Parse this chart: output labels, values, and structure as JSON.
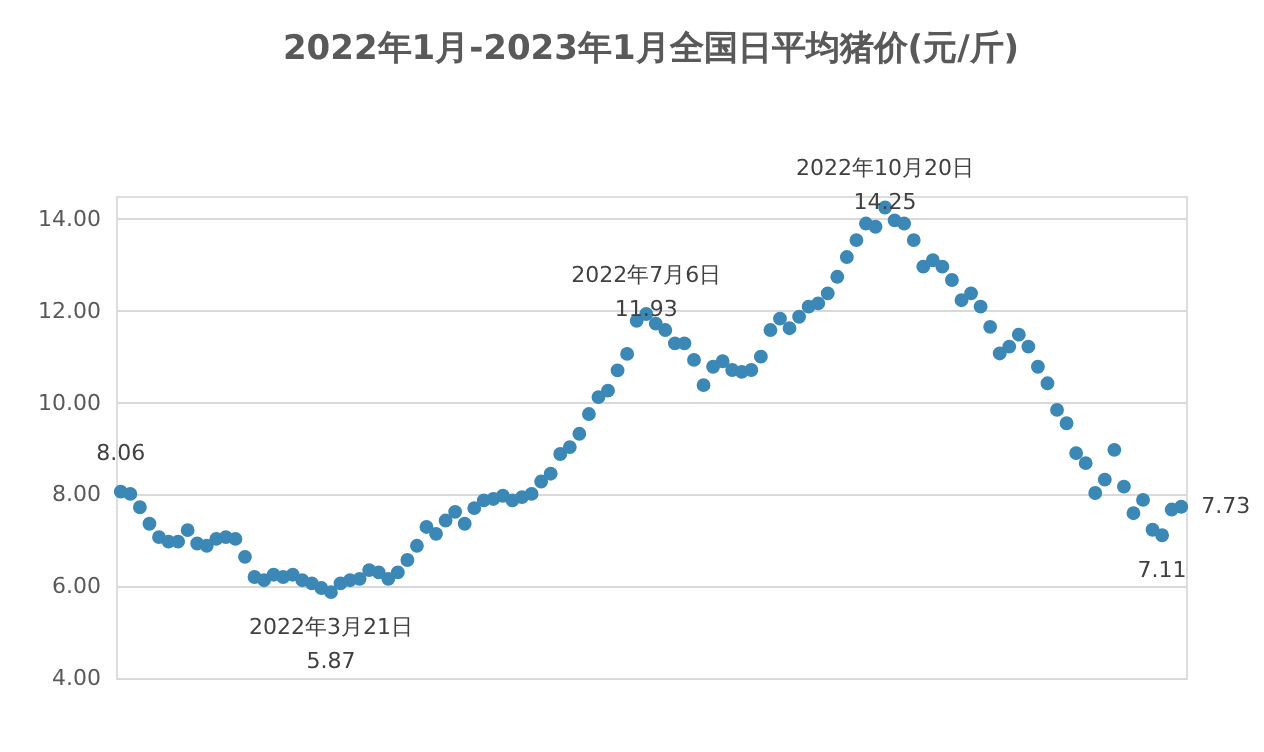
{
  "chart_data": {
    "type": "scatter",
    "title": "2022年1月-2023年1月全国日平均猪价(元/斤)",
    "categories": [
      null,
      null,
      null,
      null,
      null,
      null,
      null,
      null,
      null,
      null,
      null,
      null,
      null,
      null,
      null,
      null,
      null,
      null,
      null,
      null,
      null,
      null,
      null,
      null,
      null,
      null,
      null,
      null,
      null,
      null,
      null,
      null,
      null,
      null,
      null,
      null,
      null,
      null,
      null,
      null,
      null,
      null,
      null,
      null,
      null,
      null,
      null,
      null,
      null,
      null,
      null,
      null,
      null,
      null,
      null,
      null,
      null,
      null,
      null,
      null,
      null,
      null,
      null,
      null,
      null,
      null,
      null,
      null,
      null,
      null,
      null,
      null,
      null,
      null,
      null,
      null,
      null,
      null,
      null,
      null,
      null,
      null,
      null,
      null,
      null,
      null,
      null,
      null,
      null,
      null,
      null,
      null,
      null,
      null,
      null,
      null,
      null,
      null,
      null,
      null,
      null,
      null,
      null,
      null,
      null,
      null,
      null,
      null,
      null,
      null,
      null,
      null
    ],
    "series": [
      {
        "color": "#3b87b6",
        "values": [
          8.06,
          8.01,
          7.72,
          7.36,
          7.07,
          6.97,
          6.97,
          7.22,
          6.93,
          6.88,
          7.03,
          7.07,
          7.03,
          6.64,
          6.2,
          6.13,
          6.25,
          6.2,
          6.25,
          6.13,
          6.06,
          5.96,
          5.87,
          6.06,
          6.13,
          6.16,
          6.35,
          6.3,
          6.16,
          6.3,
          6.57,
          6.88,
          7.29,
          7.14,
          7.43,
          7.62,
          7.36,
          7.7,
          7.87,
          7.9,
          7.97,
          7.87,
          7.94,
          8.01,
          8.28,
          8.45,
          8.88,
          9.03,
          9.32,
          9.75,
          10.12,
          10.26,
          10.7,
          11.06,
          11.78,
          11.93,
          11.72,
          11.58,
          11.29,
          11.29,
          10.93,
          10.38,
          10.78,
          10.9,
          10.71,
          10.67,
          10.71,
          11.0,
          11.58,
          11.83,
          11.62,
          11.87,
          12.09,
          12.16,
          12.38,
          12.74,
          13.17,
          13.54,
          13.9,
          13.83,
          14.25,
          13.97,
          13.9,
          13.54,
          12.96,
          13.1,
          12.96,
          12.67,
          12.23,
          12.38,
          12.09,
          11.65,
          11.07,
          11.22,
          11.48,
          11.22,
          10.78,
          10.42,
          9.84,
          9.55,
          8.9,
          8.68,
          8.03,
          8.32,
          8.97,
          8.17,
          7.59,
          7.88,
          7.23,
          7.11,
          7.67,
          7.73
        ],
        "value_labels": [
          "8.06",
          null,
          null,
          null,
          null,
          null,
          null,
          null,
          null,
          null,
          null,
          null,
          null,
          null,
          null,
          null,
          null,
          null,
          null,
          null,
          null,
          null,
          "2022年3月21日\n5.87",
          null,
          null,
          null,
          null,
          null,
          null,
          null,
          null,
          null,
          null,
          null,
          null,
          null,
          null,
          null,
          null,
          null,
          null,
          null,
          null,
          null,
          null,
          null,
          null,
          null,
          null,
          null,
          null,
          null,
          null,
          null,
          null,
          "2022年7月6日\n11.93",
          null,
          null,
          null,
          null,
          null,
          null,
          null,
          null,
          null,
          null,
          null,
          null,
          null,
          null,
          null,
          null,
          null,
          null,
          null,
          null,
          null,
          null,
          null,
          null,
          "2022年10月20日\n14.25",
          null,
          null,
          null,
          null,
          null,
          null,
          null,
          null,
          null,
          null,
          null,
          null,
          null,
          null,
          null,
          null,
          null,
          null,
          null,
          null,
          null,
          null,
          null,
          null,
          null,
          null,
          null,
          null,
          "7.11",
          null,
          "7.73"
        ]
      }
    ],
    "ylim": [
      4,
      14.5
    ],
    "yticks": [
      {
        "value": 4,
        "label": "4.00"
      },
      {
        "value": 6,
        "label": "6.00"
      },
      {
        "value": 8,
        "label": "8.00"
      },
      {
        "value": 10,
        "label": "10.00"
      },
      {
        "value": 12,
        "label": "12.00"
      },
      {
        "value": 14,
        "label": "14.00"
      }
    ],
    "grid": "y",
    "marker": "circle",
    "tick_labels": "y"
  }
}
